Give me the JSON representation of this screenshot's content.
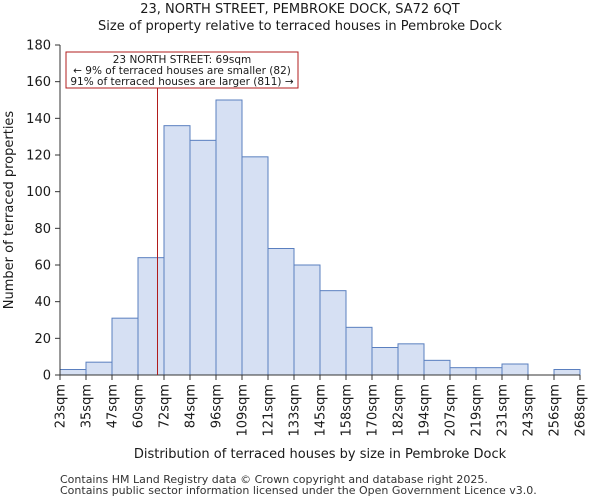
{
  "title": "23, NORTH STREET, PEMBROKE DOCK, SA72 6QT",
  "subtitle": "Size of property relative to terraced houses in Pembroke Dock",
  "footer": {
    "line1": "Contains HM Land Registry data © Crown copyright and database right 2025.",
    "line2": "Contains public sector information licensed under the Open Government Licence v3.0."
  },
  "colors": {
    "bar_fill": "#d6e0f3",
    "bar_edge": "#5a7fbf",
    "marker": "#b01c1c",
    "annotation_border": "#b01c1c",
    "axis": "#333333"
  },
  "chart_data": {
    "type": "bar",
    "title": "23, NORTH STREET, PEMBROKE DOCK, SA72 6QT",
    "subtitle": "Size of property relative to terraced houses in Pembroke Dock",
    "xlabel": "Distribution of terraced houses by size in Pembroke Dock",
    "ylabel": "Number of terraced properties",
    "ylim": [
      0,
      180
    ],
    "yticks": [
      0,
      20,
      40,
      60,
      80,
      100,
      120,
      140,
      160,
      180
    ],
    "x_tick_labels": [
      "23sqm",
      "35sqm",
      "47sqm",
      "60sqm",
      "72sqm",
      "84sqm",
      "96sqm",
      "109sqm",
      "121sqm",
      "133sqm",
      "145sqm",
      "158sqm",
      "170sqm",
      "182sqm",
      "194sqm",
      "207sqm",
      "219sqm",
      "231sqm",
      "243sqm",
      "256sqm",
      "268sqm"
    ],
    "values": [
      3,
      7,
      31,
      64,
      136,
      128,
      150,
      119,
      69,
      60,
      46,
      26,
      15,
      17,
      8,
      4,
      4,
      6,
      0,
      3
    ],
    "grid": false,
    "marker": {
      "value_bin_position": 3.75,
      "label": "23 NORTH STREET: 69sqm"
    },
    "annotation": {
      "line1": "23 NORTH STREET: 69sqm",
      "line2": "← 9% of terraced houses are smaller (82)",
      "line3": "91% of terraced houses are larger (811) →"
    }
  }
}
